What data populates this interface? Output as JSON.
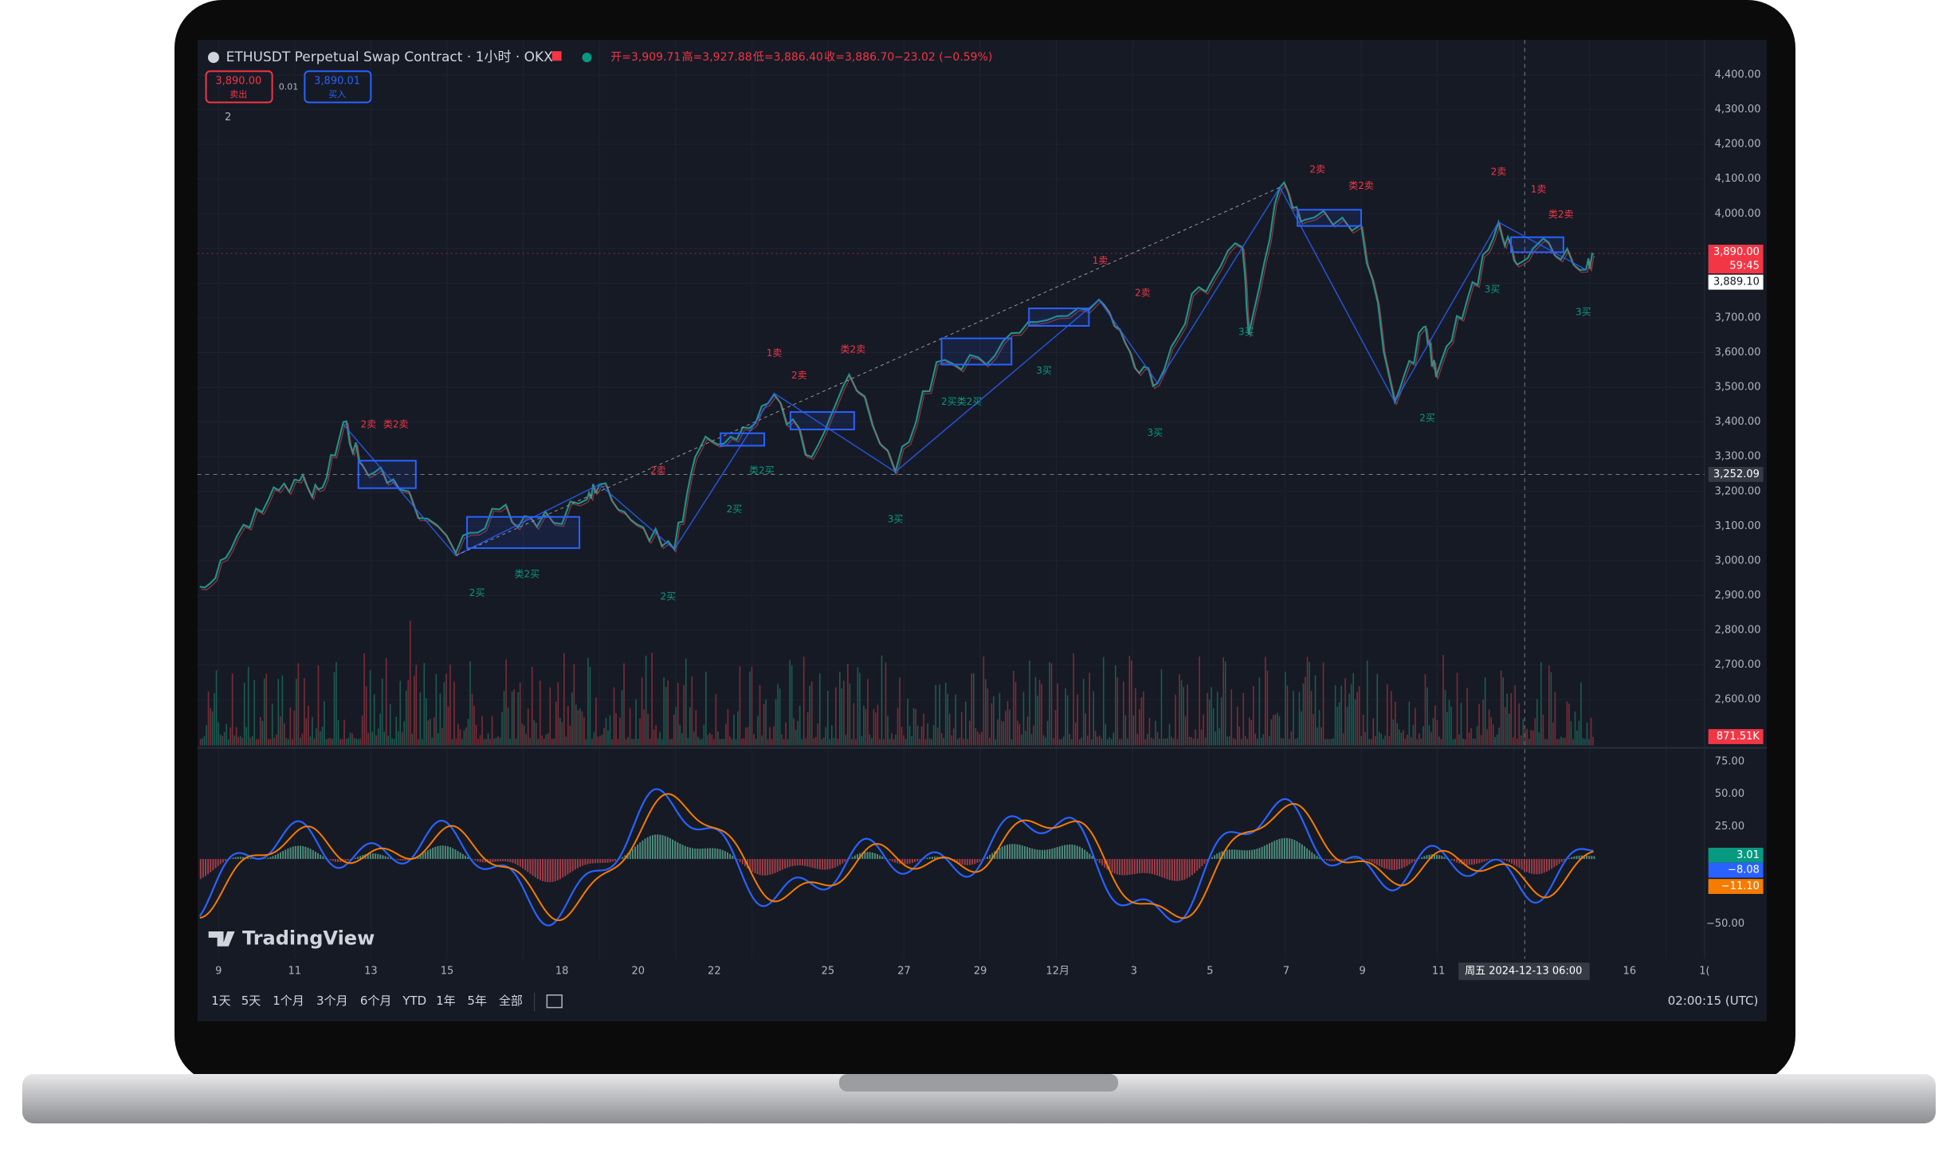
{
  "header": {
    "symbol": "ETHUSDT Perpetual Swap Contract · 1小时 · OKX",
    "ohlc": [
      "开=3,909.71",
      "高=3,927.88",
      "低=3,886.40",
      "收=3,886.70"
    ],
    "change": "−23.02 (−0.59%)"
  },
  "trade": {
    "sell_price": "3,890.00",
    "sell_label": "卖出",
    "spread": "0.01",
    "buy_price": "3,890.01",
    "buy_label": "买入"
  },
  "indicator_count": "2",
  "price_axis": [
    "4,400.00",
    "4,300.00",
    "4,200.00",
    "4,100.00",
    "4,000.00",
    "3,700.00",
    "3,600.00",
    "3,500.00",
    "3,400.00",
    "3,300.00",
    "3,200.00",
    "3,100.00",
    "3,000.00",
    "2,900.00",
    "2,800.00",
    "2,700.00",
    "2,600.00"
  ],
  "price_tags": {
    "last": "3,890.00",
    "countdown": "59:45",
    "crosshair_top": "3,889.10",
    "crosshair": "3,252.09",
    "volume": "871.51K"
  },
  "osc_axis": [
    "75.00",
    "50.00",
    "25.00",
    "−50.00"
  ],
  "osc_tags": [
    "3.01",
    "−8.08",
    "−11.10"
  ],
  "signals": [
    "2卖",
    "类2卖",
    "2买",
    "类2买",
    "2买",
    "2卖",
    "2买",
    "类2买",
    "1卖",
    "2卖",
    "类2卖",
    "3买",
    "2买类2买",
    "3买",
    "1卖",
    "2卖",
    "3买",
    "3买",
    "2卖",
    "类2卖",
    "2买",
    "3买",
    "2卖",
    "1卖",
    "类2卖",
    "3买"
  ],
  "date_axis": [
    "9",
    "11",
    "13",
    "15",
    "18",
    "20",
    "22",
    "25",
    "27",
    "29",
    "12月",
    "3",
    "5",
    "7",
    "9",
    "11",
    "16",
    "1("
  ],
  "crosshair_date": "周五 2024-12-13   06:00",
  "logo": "TradingView",
  "timeframes": [
    "1天",
    "5天",
    "1个月",
    "3个月",
    "6个月",
    "YTD",
    "1年",
    "5年",
    "全部"
  ],
  "clock": "02:00:15 (UTC)"
}
